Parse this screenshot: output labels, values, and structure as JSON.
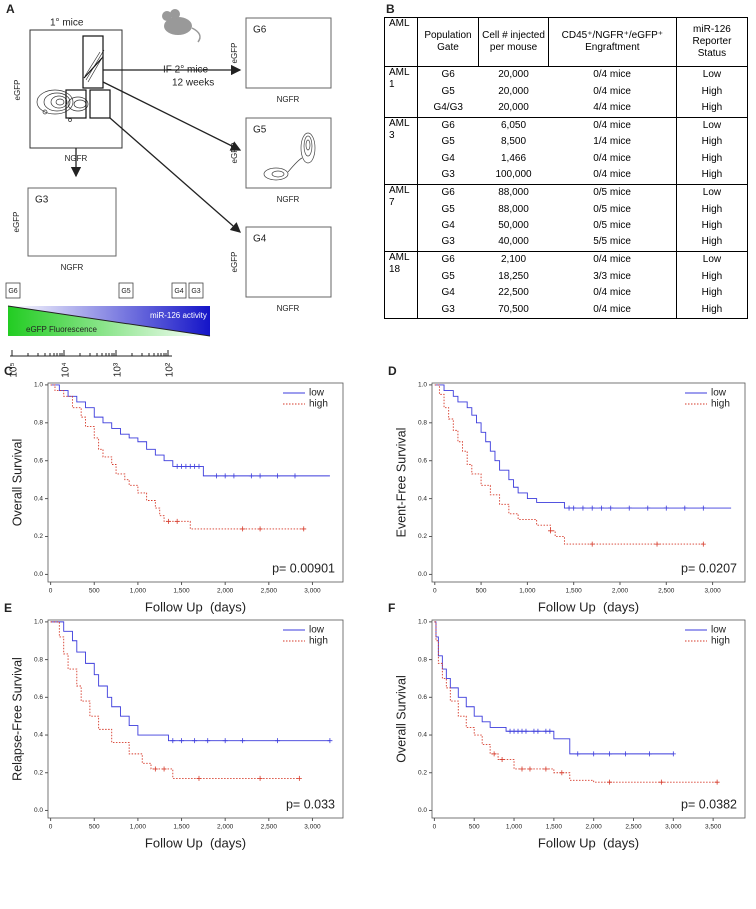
{
  "panel_a": {
    "label": "A",
    "primary": "1° mice",
    "transfer": "IF 2° mice",
    "duration": "12 weeks",
    "x_axis": "NGFR",
    "y_axis": "eGFP",
    "plots": [
      "G6",
      "G5",
      "G4",
      "G3"
    ],
    "gates": [
      "G6",
      "G5",
      "G4",
      "G3"
    ],
    "gradient": {
      "left": "eGFP Fluorescence",
      "right": "miR-126 activity"
    },
    "scale_labels": [
      "10⁵",
      "10⁴",
      "10³",
      "10²"
    ]
  },
  "panel_b": {
    "label": "B",
    "header": [
      "AML",
      "Population Gate",
      "Cell # injected per mouse",
      "CD45⁺/NGFR⁺/eGFP⁺ Engraftment",
      "miR-126 Reporter Status"
    ],
    "groups": [
      {
        "name": "AML 1",
        "rows": [
          [
            "G6",
            "20,000",
            "0/4 mice",
            "Low"
          ],
          [
            "G5",
            "20,000",
            "0/4 mice",
            "High"
          ],
          [
            "G4/G3",
            "20,000",
            "4/4 mice",
            "High"
          ]
        ]
      },
      {
        "name": "AML 3",
        "rows": [
          [
            "G6",
            "6,050",
            "0/4 mice",
            "Low"
          ],
          [
            "G5",
            "8,500",
            "1/4 mice",
            "High"
          ],
          [
            "G4",
            "1,466",
            "0/4 mice",
            "High"
          ],
          [
            "G3",
            "100,000",
            "0/4 mice",
            "High"
          ]
        ]
      },
      {
        "name": "AML 7",
        "rows": [
          [
            "G6",
            "88,000",
            "0/5 mice",
            "Low"
          ],
          [
            "G5",
            "88,000",
            "0/5 mice",
            "High"
          ],
          [
            "G4",
            "50,000",
            "0/5 mice",
            "High"
          ],
          [
            "G3",
            "40,000",
            "5/5 mice",
            "High"
          ]
        ]
      },
      {
        "name": "AML 18",
        "rows": [
          [
            "G6",
            "2,100",
            "0/4 mice",
            "Low"
          ],
          [
            "G5",
            "18,250",
            "3/3 mice",
            "High"
          ],
          [
            "G4",
            "22,500",
            "0/4 mice",
            "High"
          ],
          [
            "G3",
            "70,500",
            "0/4 mice",
            "High"
          ]
        ]
      }
    ]
  },
  "chart_data": [
    {
      "panel": "C",
      "type": "line",
      "ylabel": "Overall Survival",
      "xlabel": "Follow Up  (days)",
      "annotation": "p= 0.00901",
      "xlim": [
        -30,
        3350
      ],
      "ylim": [
        -0.04,
        1.01
      ],
      "xticks": [
        0,
        500,
        {
          "value": 1000,
          "label": "1,000"
        },
        {
          "value": 1500,
          "label": "1,500"
        },
        {
          "value": 2000,
          "label": "2,000"
        },
        {
          "value": 2500,
          "label": "2,500"
        },
        {
          "value": 3000,
          "label": "3,000"
        }
      ],
      "yticks": [
        {
          "value": 0,
          "label": "0.0"
        },
        0.2,
        0.4,
        0.6,
        0.8,
        {
          "value": 1,
          "label": "1.0"
        }
      ],
      "legend": "upper right",
      "series": [
        {
          "name": "low",
          "color": "#3b3bdc",
          "style": "solid",
          "x": [
            0,
            100,
            200,
            300,
            400,
            500,
            600,
            700,
            800,
            900,
            1000,
            1100,
            1200,
            1300,
            1400,
            1750,
            3200
          ],
          "values": [
            1,
            0.97,
            0.94,
            0.91,
            0.88,
            0.83,
            0.8,
            0.77,
            0.74,
            0.72,
            0.7,
            0.66,
            0.63,
            0.6,
            0.57,
            0.52,
            0.52
          ],
          "censored": [
            1450,
            1500,
            1550,
            1600,
            1650,
            1700,
            1900,
            2000,
            2100,
            2300,
            2400,
            2600,
            2800
          ]
        },
        {
          "name": "high",
          "color": "#d63a2a",
          "style": "dotted",
          "x": [
            0,
            50,
            150,
            250,
            350,
            400,
            500,
            550,
            600,
            700,
            750,
            850,
            900,
            1000,
            1100,
            1200,
            1250,
            1300,
            1600,
            2900
          ],
          "values": [
            1,
            0.97,
            0.94,
            0.88,
            0.83,
            0.78,
            0.72,
            0.66,
            0.62,
            0.58,
            0.53,
            0.5,
            0.47,
            0.43,
            0.39,
            0.35,
            0.31,
            0.28,
            0.24,
            0.24
          ],
          "censored": [
            1350,
            1450,
            2200,
            2400,
            2900
          ]
        }
      ]
    },
    {
      "panel": "D",
      "type": "line",
      "ylabel": "Event-Free Survival",
      "xlabel": "Follow Up  (days)",
      "annotation": "p= 0.0207",
      "xlim": [
        -30,
        3350
      ],
      "ylim": [
        -0.04,
        1.01
      ],
      "xticks": [
        0,
        500,
        {
          "value": 1000,
          "label": "1,000"
        },
        {
          "value": 1500,
          "label": "1,500"
        },
        {
          "value": 2000,
          "label": "2,000"
        },
        {
          "value": 2500,
          "label": "2,500"
        },
        {
          "value": 3000,
          "label": "3,000"
        }
      ],
      "yticks": [
        {
          "value": 0,
          "label": "0.0"
        },
        0.2,
        0.4,
        0.6,
        0.8,
        {
          "value": 1,
          "label": "1.0"
        }
      ],
      "legend": "upper right",
      "series": [
        {
          "name": "low",
          "color": "#3b3bdc",
          "style": "solid",
          "x": [
            0,
            100,
            200,
            250,
            350,
            400,
            450,
            500,
            550,
            600,
            650,
            700,
            800,
            850,
            900,
            1000,
            1100,
            1400,
            3200
          ],
          "values": [
            1,
            0.97,
            0.94,
            0.91,
            0.88,
            0.84,
            0.8,
            0.75,
            0.7,
            0.65,
            0.6,
            0.55,
            0.5,
            0.46,
            0.43,
            0.4,
            0.38,
            0.35,
            0.35
          ],
          "censored": [
            1450,
            1500,
            1600,
            1700,
            1800,
            1900,
            2100,
            2300,
            2500,
            2700,
            2900
          ]
        },
        {
          "name": "high",
          "color": "#d63a2a",
          "style": "dotted",
          "x": [
            0,
            50,
            100,
            150,
            200,
            250,
            300,
            350,
            400,
            500,
            600,
            700,
            800,
            900,
            1100,
            1250,
            1300,
            1400,
            2900
          ],
          "values": [
            1,
            0.95,
            0.88,
            0.82,
            0.76,
            0.7,
            0.65,
            0.58,
            0.53,
            0.47,
            0.42,
            0.37,
            0.32,
            0.29,
            0.26,
            0.23,
            0.2,
            0.16,
            0.16
          ],
          "censored": [
            1250,
            1700,
            2400,
            2900
          ]
        }
      ]
    },
    {
      "panel": "E",
      "type": "line",
      "ylabel": "Relapse-Free Survival",
      "xlabel": "Follow Up  (days)",
      "annotation": "p= 0.033",
      "xlim": [
        -30,
        3350
      ],
      "ylim": [
        -0.04,
        1.01
      ],
      "xticks": [
        0,
        500,
        {
          "value": 1000,
          "label": "1,000"
        },
        {
          "value": 1500,
          "label": "1,500"
        },
        {
          "value": 2000,
          "label": "2,000"
        },
        {
          "value": 2500,
          "label": "2,500"
        },
        {
          "value": 3000,
          "label": "3,000"
        }
      ],
      "yticks": [
        {
          "value": 0,
          "label": "0.0"
        },
        0.2,
        0.4,
        0.6,
        0.8,
        {
          "value": 1,
          "label": "1.0"
        }
      ],
      "legend": "upper right",
      "series": [
        {
          "name": "low",
          "color": "#3b3bdc",
          "style": "solid",
          "x": [
            0,
            150,
            250,
            300,
            400,
            500,
            550,
            650,
            700,
            800,
            900,
            1000,
            1350,
            3200
          ],
          "values": [
            1,
            0.95,
            0.9,
            0.84,
            0.78,
            0.72,
            0.66,
            0.6,
            0.55,
            0.5,
            0.45,
            0.4,
            0.37,
            0.37
          ],
          "censored": [
            1400,
            1500,
            1650,
            1800,
            2000,
            2200,
            2600,
            3200
          ]
        },
        {
          "name": "high",
          "color": "#d63a2a",
          "style": "dotted",
          "x": [
            0,
            100,
            150,
            200,
            300,
            350,
            450,
            550,
            700,
            900,
            1050,
            1150,
            1400,
            2850
          ],
          "values": [
            1,
            0.92,
            0.83,
            0.75,
            0.66,
            0.58,
            0.5,
            0.43,
            0.36,
            0.3,
            0.25,
            0.22,
            0.17,
            0.17
          ],
          "censored": [
            1200,
            1300,
            1700,
            2400,
            2850
          ]
        }
      ]
    },
    {
      "panel": "F",
      "type": "line",
      "ylabel": "Overall Survival",
      "xlabel": "Follow Up  (days)",
      "annotation": "p= 0.0382",
      "xlim": [
        -30,
        3900
      ],
      "ylim": [
        -0.04,
        1.01
      ],
      "xticks": [
        0,
        500,
        {
          "value": 1000,
          "label": "1,000"
        },
        {
          "value": 1500,
          "label": "1,500"
        },
        {
          "value": 2000,
          "label": "2,000"
        },
        {
          "value": 2500,
          "label": "2,500"
        },
        {
          "value": 3000,
          "label": "3,000"
        },
        {
          "value": 3500,
          "label": "3,500"
        }
      ],
      "yticks": [
        {
          "value": 0,
          "label": "0.0"
        },
        0.2,
        0.4,
        0.6,
        0.8,
        {
          "value": 1,
          "label": "1.0"
        }
      ],
      "legend": "upper right",
      "series": [
        {
          "name": "low",
          "color": "#3b3bdc",
          "style": "solid",
          "x": [
            0,
            20,
            50,
            100,
            150,
            200,
            300,
            400,
            500,
            600,
            700,
            900,
            1500,
            1700,
            3000
          ],
          "values": [
            1,
            0.92,
            0.82,
            0.75,
            0.7,
            0.65,
            0.6,
            0.55,
            0.5,
            0.47,
            0.44,
            0.42,
            0.38,
            0.3,
            0.3
          ],
          "censored": [
            950,
            1000,
            1050,
            1100,
            1150,
            1250,
            1300,
            1400,
            1450,
            1800,
            2000,
            2200,
            2400,
            2700,
            3000
          ]
        },
        {
          "name": "high",
          "color": "#d63a2a",
          "style": "dotted",
          "x": [
            0,
            20,
            50,
            100,
            150,
            200,
            300,
            400,
            500,
            600,
            700,
            800,
            1000,
            1500,
            1700,
            2000,
            3550
          ],
          "values": [
            1,
            0.9,
            0.78,
            0.7,
            0.65,
            0.58,
            0.5,
            0.44,
            0.4,
            0.35,
            0.3,
            0.27,
            0.22,
            0.2,
            0.16,
            0.15,
            0.15
          ],
          "censored": [
            750,
            850,
            1100,
            1200,
            1400,
            1600,
            2200,
            2850,
            3550
          ]
        }
      ]
    }
  ]
}
